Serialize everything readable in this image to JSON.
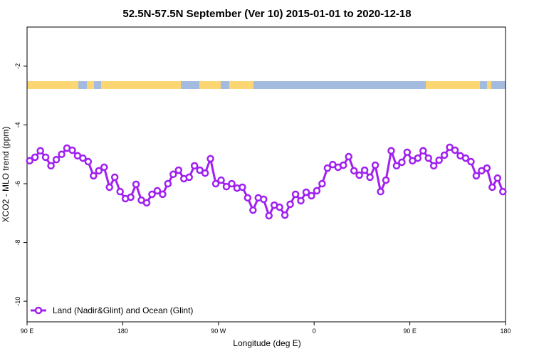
{
  "chart_data": {
    "type": "line",
    "title": "52.5N-57.5N September (Ver 10)   2015-01-01 to 2020-12-18",
    "x_label": "Longitude (deg E)",
    "y_label": "XCO2 - MLO trend (ppm)",
    "xlim": [
      90,
      540
    ],
    "ylim": [
      -10.7,
      -0.67
    ],
    "xticks": [
      {
        "value": 90,
        "label": "90 E"
      },
      180,
      {
        "value": 270,
        "label": "90 W"
      },
      {
        "value": 360,
        "label": "0"
      },
      {
        "value": 450,
        "label": "90 E"
      },
      {
        "value": 540,
        "label": "180"
      }
    ],
    "yticks": [
      -10,
      -8,
      -6,
      -4,
      -2
    ],
    "legend_position": "bottomleft",
    "x": [
      92.5,
      97.5,
      102.5,
      107.5,
      112.5,
      117.5,
      122.5,
      127.5,
      132.5,
      137.5,
      142.5,
      147.5,
      152.5,
      157.5,
      162.5,
      167.5,
      172.5,
      177.5,
      182.5,
      187.5,
      192.5,
      197.5,
      202.5,
      207.5,
      212.5,
      217.5,
      222.5,
      227.5,
      232.5,
      237.5,
      242.5,
      247.5,
      252.5,
      257.5,
      262.5,
      267.5,
      272.5,
      277.5,
      282.5,
      287.5,
      292.5,
      297.5,
      302.5,
      307.5,
      312.5,
      317.5,
      322.5,
      327.5,
      332.5,
      337.5,
      342.5,
      347.5,
      352.5,
      357.5,
      362.5,
      367.5,
      372.5,
      377.5,
      382.5,
      387.5,
      392.5,
      397.5,
      402.5,
      407.5,
      412.5,
      417.5,
      422.5,
      427.5,
      432.5,
      437.5,
      442.5,
      447.5,
      452.5,
      457.5,
      462.5,
      467.5,
      472.5,
      477.5,
      482.5,
      487.5,
      492.5,
      497.5,
      502.5,
      507.5,
      512.5,
      517.5,
      522.5,
      527.5,
      532.5,
      537.5
    ],
    "series": [
      {
        "name": "Land (Nadir&Glint) and Ocean (Glint)",
        "color": "#a020f0",
        "values": [
          -5.22,
          -5.1,
          -4.88,
          -5.1,
          -5.39,
          -5.18,
          -5.0,
          -4.79,
          -4.86,
          -5.05,
          -5.13,
          -5.25,
          -5.73,
          -5.56,
          -5.44,
          -6.12,
          -5.78,
          -6.27,
          -6.51,
          -6.46,
          -6.02,
          -6.56,
          -6.65,
          -6.36,
          -6.24,
          -6.36,
          -6.0,
          -5.68,
          -5.54,
          -5.83,
          -5.78,
          -5.39,
          -5.54,
          -5.64,
          -5.15,
          -6.0,
          -5.88,
          -6.1,
          -6.0,
          -6.15,
          -6.12,
          -6.48,
          -6.9,
          -6.48,
          -6.53,
          -7.09,
          -6.73,
          -6.8,
          -7.07,
          -6.7,
          -6.36,
          -6.58,
          -6.29,
          -6.41,
          -6.24,
          -6.0,
          -5.47,
          -5.35,
          -5.44,
          -5.37,
          -5.08,
          -5.56,
          -5.71,
          -5.54,
          -5.78,
          -5.37,
          -6.27,
          -5.88,
          -4.88,
          -5.39,
          -5.27,
          -4.93,
          -5.22,
          -5.13,
          -4.88,
          -5.13,
          -5.39,
          -5.2,
          -5.03,
          -4.76,
          -4.86,
          -5.05,
          -5.13,
          -5.25,
          -5.73,
          -5.56,
          -5.47,
          -6.12,
          -5.81,
          -6.27
        ]
      }
    ]
  }
}
